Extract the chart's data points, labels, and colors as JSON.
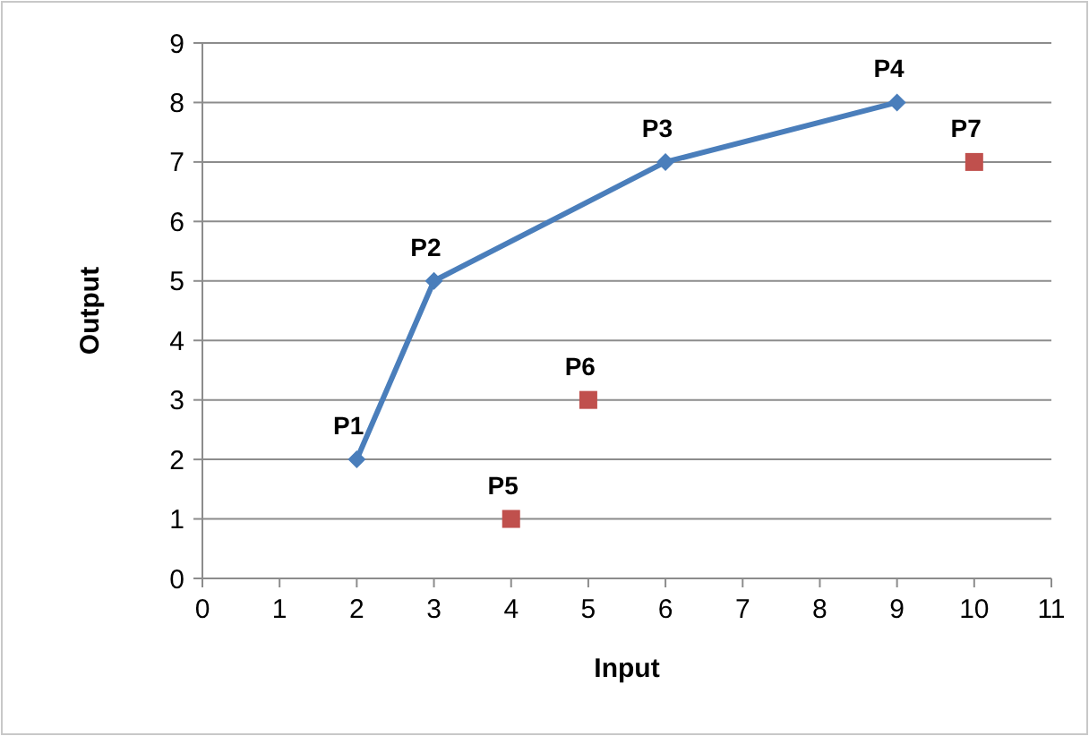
{
  "chart_data": {
    "type": "line",
    "xlabel": "Input",
    "ylabel": "Output",
    "xlim": [
      0,
      11
    ],
    "xticks": [
      0,
      1,
      2,
      3,
      4,
      5,
      6,
      7,
      8,
      9,
      10,
      11
    ],
    "ylim": [
      0,
      9
    ],
    "yticks": [
      0,
      1,
      2,
      3,
      4,
      5,
      6,
      7,
      8,
      9
    ],
    "grid": "y",
    "series": [
      {
        "color": "#4a7ebb",
        "marker": "diamond",
        "x": [
          2,
          3,
          6,
          9
        ],
        "values": [
          2,
          5,
          7,
          8
        ]
      },
      {
        "type": "scatter",
        "color": "#c0504d",
        "marker": "square",
        "x": [
          4,
          5,
          10
        ],
        "values": [
          1,
          3,
          7
        ]
      }
    ],
    "annotations": [
      {
        "text": "P1",
        "x": 2,
        "y": 2
      },
      {
        "text": "P2",
        "x": 3,
        "y": 5
      },
      {
        "text": "P3",
        "x": 6,
        "y": 7
      },
      {
        "text": "P4",
        "x": 9,
        "y": 8
      },
      {
        "text": "P5",
        "x": 4,
        "y": 1
      },
      {
        "text": "P6",
        "x": 5,
        "y": 3
      },
      {
        "text": "P7",
        "x": 10,
        "y": 7
      }
    ]
  }
}
